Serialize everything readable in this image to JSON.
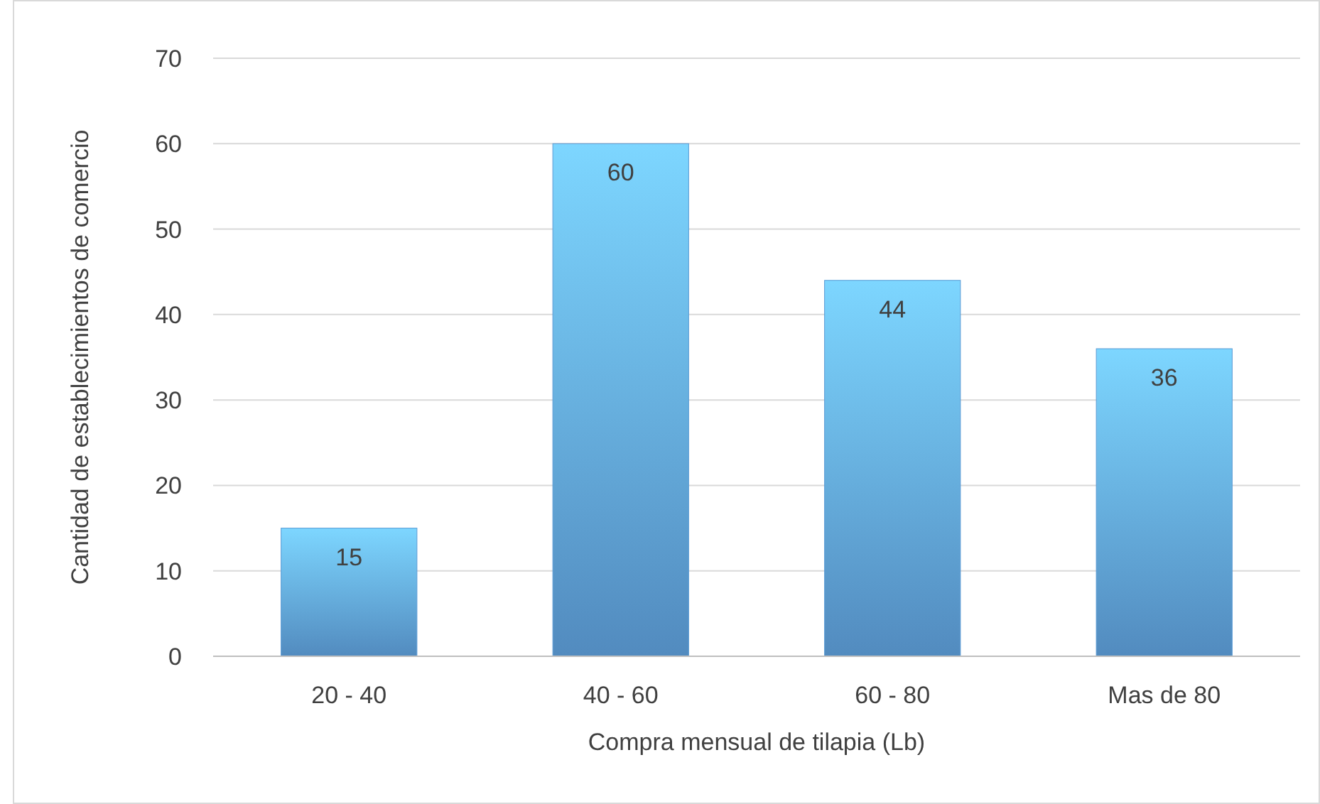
{
  "chart_data": {
    "type": "bar",
    "xlabel": "Compra mensual de tilapia (Lb)",
    "ylabel": "Cantidad de establecimientos de comercio",
    "categories": [
      "20 - 40",
      "40 - 60",
      "60 - 80",
      "Mas de 80"
    ],
    "values": [
      15,
      60,
      44,
      36
    ],
    "color": "#5b9bd5",
    "ylim": [
      0,
      70
    ],
    "yticks": [
      0,
      10,
      20,
      30,
      40,
      50,
      60,
      70
    ],
    "grid": "y",
    "data_labels": true
  }
}
